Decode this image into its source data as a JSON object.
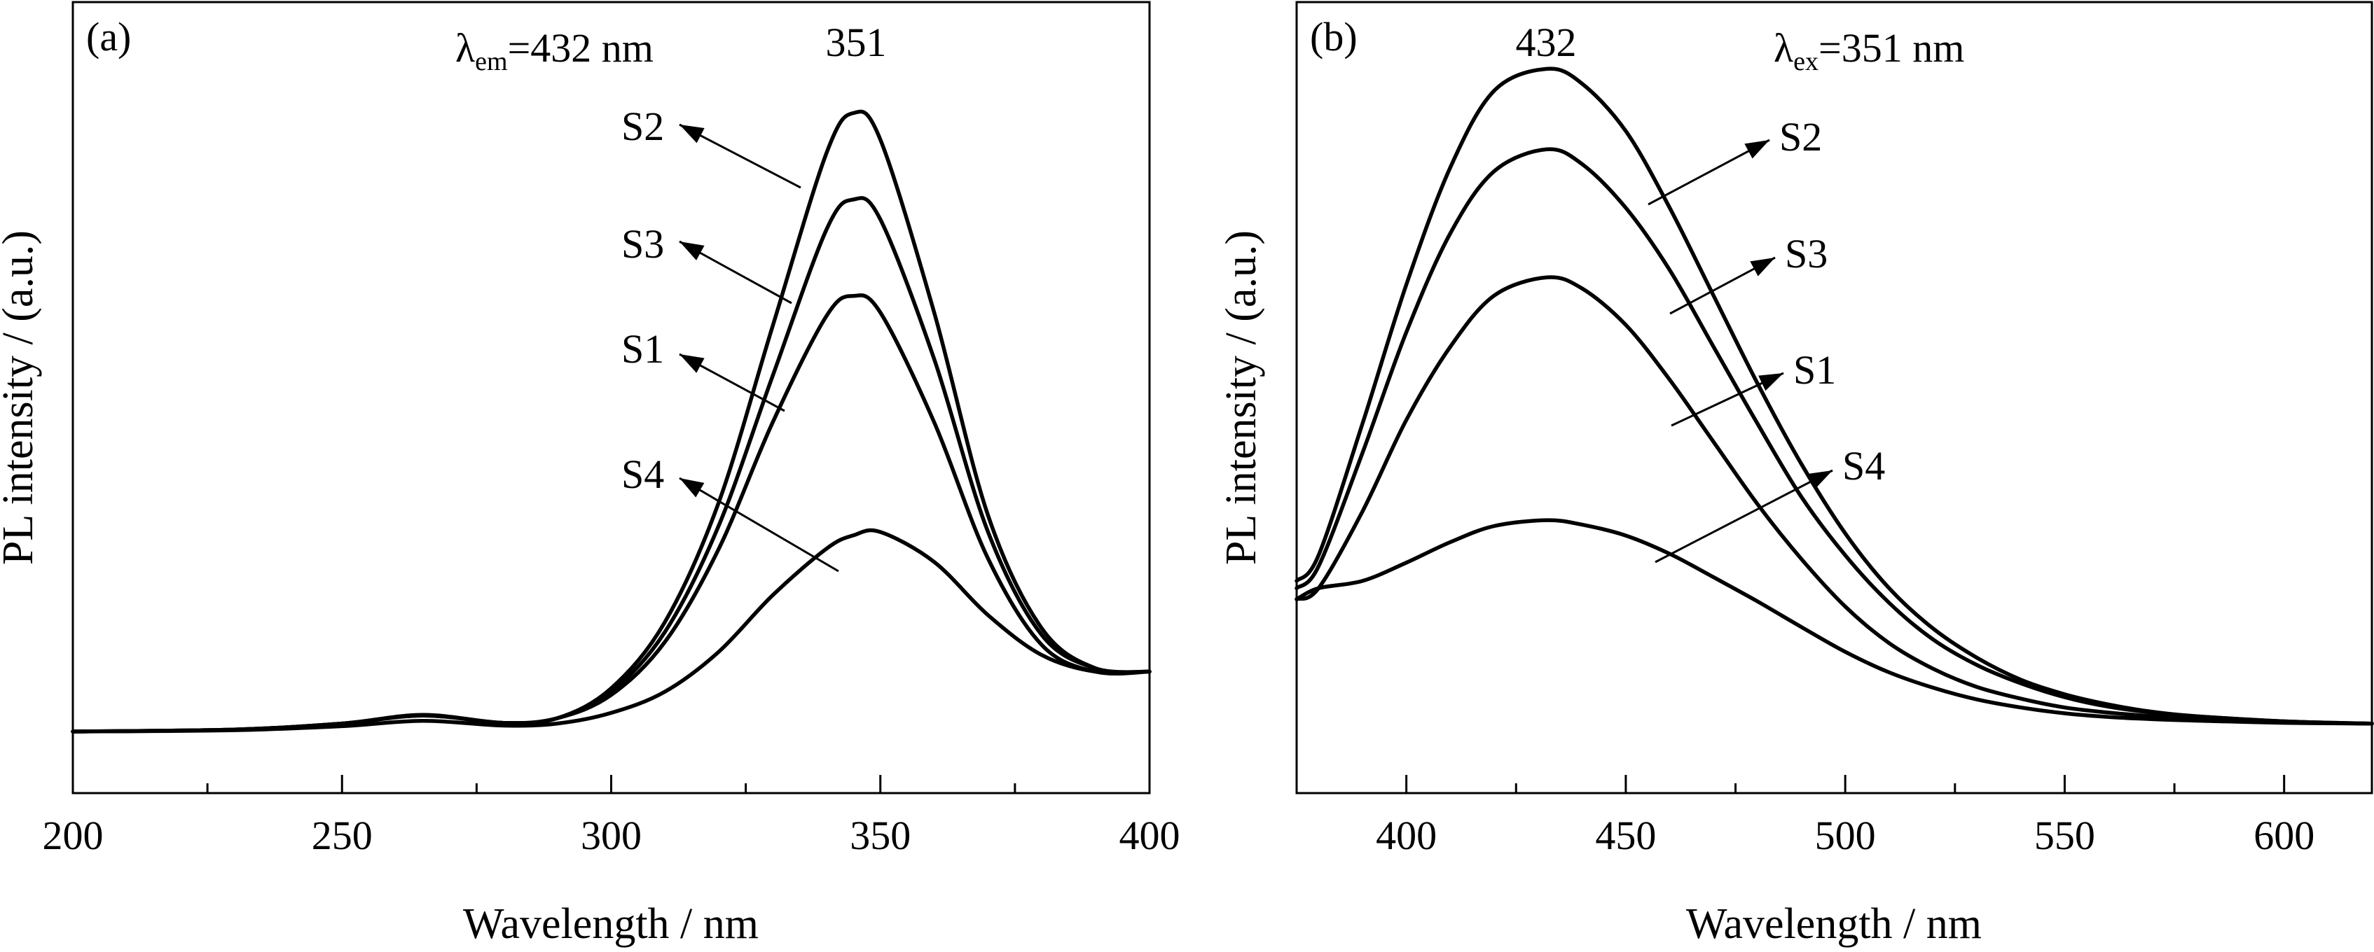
{
  "chart_data": [
    {
      "type": "line",
      "panel_label": "(a)",
      "xlabel": "Wavelength / nm",
      "ylabel": "PL intensity / (a.u.)",
      "x_ticks": [
        200,
        250,
        300,
        350,
        400
      ],
      "xlim": [
        200,
        400
      ],
      "ylim": [
        0,
        1
      ],
      "y_ticks_shown": false,
      "annotation": {
        "main": "λ",
        "sub": "em",
        "rest": "=432 nm"
      },
      "peak_label": "351",
      "legend": "arrow labels beside curves",
      "series": [
        {
          "name": "S2",
          "x": [
            200,
            230,
            250,
            265,
            280,
            290,
            300,
            310,
            320,
            330,
            340,
            345,
            350,
            360,
            370,
            380,
            390,
            400
          ],
          "y": [
            0.0,
            0.003,
            0.012,
            0.025,
            0.013,
            0.02,
            0.065,
            0.165,
            0.345,
            0.61,
            0.87,
            0.93,
            0.89,
            0.63,
            0.325,
            0.155,
            0.095,
            0.09
          ]
        },
        {
          "name": "S3",
          "x": [
            200,
            230,
            250,
            265,
            280,
            290,
            300,
            310,
            320,
            330,
            340,
            345,
            350,
            360,
            370,
            380,
            390,
            400
          ],
          "y": [
            0.0,
            0.003,
            0.012,
            0.024,
            0.013,
            0.02,
            0.06,
            0.15,
            0.31,
            0.535,
            0.755,
            0.8,
            0.77,
            0.56,
            0.3,
            0.145,
            0.095,
            0.09
          ]
        },
        {
          "name": "S1",
          "x": [
            200,
            230,
            250,
            265,
            280,
            290,
            300,
            310,
            320,
            330,
            340,
            345,
            350,
            360,
            370,
            380,
            390,
            400
          ],
          "y": [
            0.0,
            0.003,
            0.012,
            0.024,
            0.013,
            0.02,
            0.055,
            0.135,
            0.275,
            0.465,
            0.625,
            0.655,
            0.63,
            0.465,
            0.26,
            0.13,
            0.09,
            0.09
          ]
        },
        {
          "name": "S4",
          "x": [
            200,
            230,
            250,
            265,
            280,
            290,
            300,
            310,
            320,
            330,
            340,
            345,
            350,
            360,
            370,
            380,
            390,
            400
          ],
          "y": [
            0.0,
            0.002,
            0.008,
            0.016,
            0.009,
            0.012,
            0.028,
            0.06,
            0.12,
            0.205,
            0.275,
            0.295,
            0.3,
            0.255,
            0.175,
            0.115,
            0.09,
            0.09
          ]
        }
      ]
    },
    {
      "type": "line",
      "panel_label": "(b)",
      "xlabel": "Wavelength / nm",
      "ylabel": "PL intensity / (a.u.)",
      "x_ticks": [
        400,
        450,
        500,
        550,
        600
      ],
      "xlim": [
        375,
        620
      ],
      "ylim": [
        0,
        1
      ],
      "y_ticks_shown": false,
      "annotation": {
        "main": "λ",
        "sub": "ex",
        "rest": "=351 nm"
      },
      "peak_label": "432",
      "legend": "arrow labels beside curves",
      "series": [
        {
          "name": "S2",
          "x": [
            375,
            380,
            390,
            400,
            410,
            420,
            432,
            440,
            450,
            460,
            470,
            480,
            490,
            500,
            510,
            520,
            530,
            540,
            550,
            560,
            570,
            580,
            600,
            620
          ],
          "y": [
            0.225,
            0.26,
            0.44,
            0.63,
            0.79,
            0.895,
            0.925,
            0.905,
            0.84,
            0.735,
            0.615,
            0.495,
            0.385,
            0.29,
            0.215,
            0.16,
            0.12,
            0.09,
            0.07,
            0.056,
            0.046,
            0.04,
            0.033,
            0.03
          ]
        },
        {
          "name": "S3",
          "x": [
            375,
            380,
            390,
            400,
            410,
            420,
            432,
            440,
            450,
            460,
            470,
            480,
            490,
            500,
            510,
            520,
            530,
            540,
            550,
            560,
            570,
            580,
            600,
            620
          ],
          "y": [
            0.215,
            0.245,
            0.4,
            0.565,
            0.7,
            0.785,
            0.815,
            0.795,
            0.735,
            0.65,
            0.545,
            0.44,
            0.34,
            0.26,
            0.195,
            0.145,
            0.11,
            0.085,
            0.066,
            0.053,
            0.045,
            0.04,
            0.033,
            0.03
          ]
        },
        {
          "name": "S1",
          "x": [
            375,
            380,
            390,
            400,
            410,
            420,
            432,
            440,
            450,
            460,
            470,
            480,
            490,
            500,
            510,
            520,
            530,
            540,
            550,
            560,
            570,
            580,
            600,
            620
          ],
          "y": [
            0.2,
            0.215,
            0.32,
            0.445,
            0.545,
            0.615,
            0.64,
            0.625,
            0.575,
            0.5,
            0.415,
            0.33,
            0.255,
            0.19,
            0.14,
            0.105,
            0.08,
            0.064,
            0.052,
            0.045,
            0.04,
            0.036,
            0.032,
            0.03
          ]
        },
        {
          "name": "S4",
          "x": [
            375,
            380,
            390,
            400,
            410,
            420,
            432,
            440,
            450,
            460,
            470,
            480,
            490,
            500,
            510,
            520,
            530,
            540,
            550,
            560,
            570,
            580,
            600,
            620
          ],
          "y": [
            0.2,
            0.215,
            0.225,
            0.25,
            0.278,
            0.3,
            0.308,
            0.302,
            0.287,
            0.262,
            0.23,
            0.197,
            0.162,
            0.128,
            0.1,
            0.079,
            0.063,
            0.052,
            0.044,
            0.039,
            0.036,
            0.034,
            0.031,
            0.03
          ]
        }
      ]
    }
  ]
}
